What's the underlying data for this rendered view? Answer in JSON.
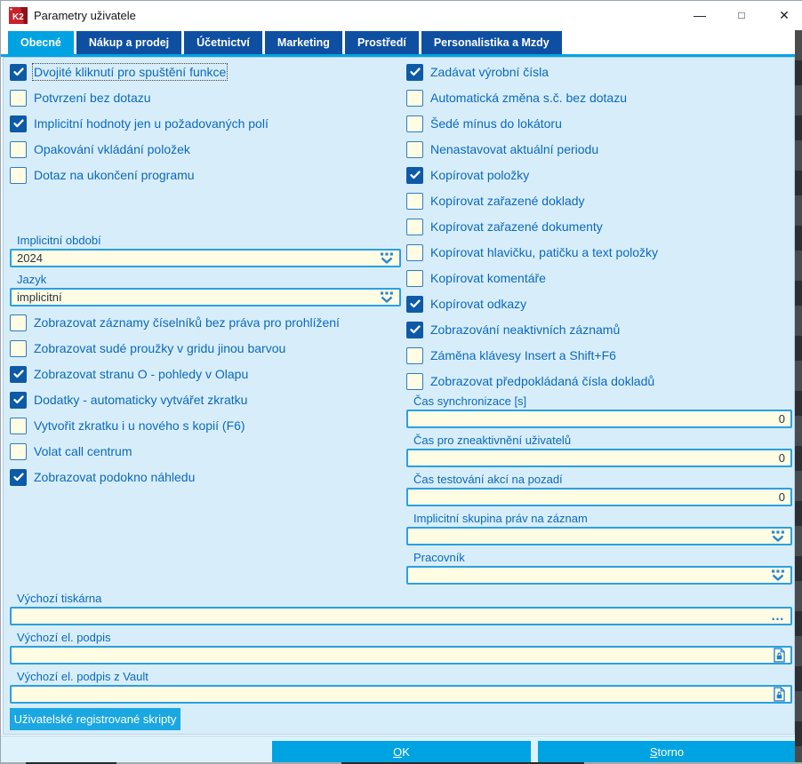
{
  "window": {
    "title": "Parametry uživatele",
    "logo_text": "K2",
    "controls": {
      "minimize": "—",
      "maximize": "□",
      "close": "✕"
    }
  },
  "tabs": [
    {
      "label": "Obecné",
      "active": true
    },
    {
      "label": "Nákup a prodej",
      "active": false
    },
    {
      "label": "Účetnictví",
      "active": false
    },
    {
      "label": "Marketing",
      "active": false
    },
    {
      "label": "Prostředí",
      "active": false
    },
    {
      "label": "Personalistika a Mzdy",
      "active": false
    }
  ],
  "checkbox_groups": {
    "left_top": [
      {
        "label": "Dvojité kliknutí pro spuštění funkce",
        "checked": true,
        "focused": true
      },
      {
        "label": "Potvrzení bez dotazu",
        "checked": false
      },
      {
        "label": "Implicitní hodnoty jen u požadovaných polí",
        "checked": true
      },
      {
        "label": "Opakování vkládání položek",
        "checked": false
      },
      {
        "label": "Dotaz na ukončení programu",
        "checked": false
      }
    ],
    "left_bottom": [
      {
        "label": "Zobrazovat záznamy číselníků bez práva pro prohlížení",
        "checked": false
      },
      {
        "label": "Zobrazovat sudé proužky v gridu jinou barvou",
        "checked": false
      },
      {
        "label": "Zobrazovat stranu O - pohledy v Olapu",
        "checked": true
      },
      {
        "label": "Dodatky - automaticky vytvářet zkratku",
        "checked": true
      },
      {
        "label": "Vytvořit zkratku i u nového s kopií (F6)",
        "checked": false
      },
      {
        "label": "Volat call centrum",
        "checked": false
      },
      {
        "label": "Zobrazovat podokno náhledu",
        "checked": true
      }
    ],
    "right": [
      {
        "label": "Zadávat výrobní čísla",
        "checked": true
      },
      {
        "label": "Automatická změna s.č. bez dotazu",
        "checked": false
      },
      {
        "label": "Šedé mínus do lokátoru",
        "checked": false
      },
      {
        "label": "Nenastavovat aktuální periodu",
        "checked": false
      },
      {
        "label": "Kopírovat položky",
        "checked": true
      },
      {
        "label": "Kopírovat zařazené doklady",
        "checked": false
      },
      {
        "label": "Kopírovat zařazené dokumenty",
        "checked": false
      },
      {
        "label": "Kopírovat hlavičku, patičku a text položky",
        "checked": false
      },
      {
        "label": "Kopírovat komentáře",
        "checked": false
      },
      {
        "label": "Kopírovat odkazy",
        "checked": true
      },
      {
        "label": "Zobrazování neaktivních záznamů",
        "checked": true
      },
      {
        "label": "Záměna klávesy Insert a Shift+F6",
        "checked": false
      },
      {
        "label": "Zobrazovat předpokládaná čísla dokladů",
        "checked": false
      }
    ]
  },
  "fields": {
    "left": [
      {
        "label": "Implicitní období",
        "value": "2024",
        "type": "combo"
      },
      {
        "label": "Jazyk",
        "value": "implicitní",
        "type": "combo"
      }
    ],
    "right": [
      {
        "label": "Čas synchronizace [s]",
        "value": "0",
        "type": "number"
      },
      {
        "label": "Čas pro zneaktivnění uživatelů",
        "value": "0",
        "type": "number"
      },
      {
        "label": "Čas testování akcí na pozadí",
        "value": "0",
        "type": "number"
      },
      {
        "label": "Implicitní skupina práv na záznam",
        "value": "",
        "type": "combo"
      },
      {
        "label": "Pracovník",
        "value": "",
        "type": "combo"
      }
    ],
    "bottom": [
      {
        "label": "Výchozí tiskárna",
        "value": "",
        "type": "ellipsis"
      },
      {
        "label": "Výchozí el. podpis",
        "value": "",
        "type": "signature"
      },
      {
        "label": "Výchozí el. podpis z Vault",
        "value": "",
        "type": "signature"
      }
    ]
  },
  "buttons": {
    "scripts": "Uživatelské registrované skripty",
    "ok": "OK",
    "cancel": "Storno"
  },
  "icons": {
    "browse": "…",
    "dropdown": "dropdown-list-icon",
    "signature": "signed-document-icon"
  },
  "colors": {
    "accent": "#00a3e2",
    "tab_inactive": "#0e4fa1",
    "checkbox_checked": "#0d5aa7",
    "label_blue": "#0a6abf",
    "panel_bg": "#d8edfa",
    "field_bg": "#fffce4",
    "field_border": "#2aa0e2",
    "logo_red": "#c8232b"
  }
}
